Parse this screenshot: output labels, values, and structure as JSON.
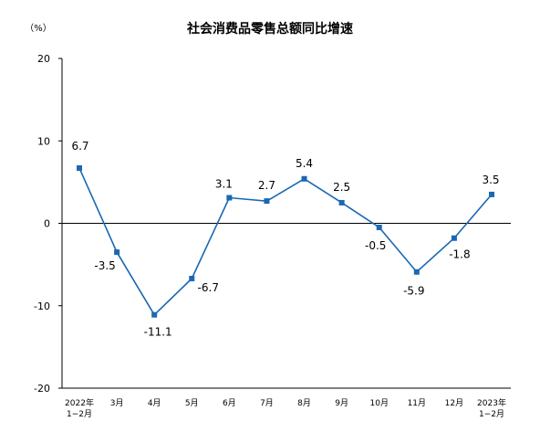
{
  "chart_data": {
    "type": "line",
    "title": "社会消费品零售总额同比增速",
    "unit_label": "（%）",
    "categories": [
      [
        "2022年",
        "1−2月"
      ],
      [
        "3月"
      ],
      [
        "4月"
      ],
      [
        "5月"
      ],
      [
        "6月"
      ],
      [
        "7月"
      ],
      [
        "8月"
      ],
      [
        "9月"
      ],
      [
        "10月"
      ],
      [
        "11月"
      ],
      [
        "12月"
      ],
      [
        "2023年",
        "1−2月"
      ]
    ],
    "values": [
      6.7,
      -3.5,
      -11.1,
      -6.7,
      3.1,
      2.7,
      5.4,
      2.5,
      -0.5,
      -5.9,
      -1.8,
      3.5
    ],
    "data_labels": [
      "6.7",
      "-3.5",
      "-11.1",
      "-6.7",
      "3.1",
      "2.7",
      "5.4",
      "2.5",
      "-0.5",
      "-5.9",
      "-1.8",
      "3.5"
    ],
    "ylim": [
      -20,
      20
    ],
    "yticks": [
      20,
      10,
      0,
      -10,
      -20
    ],
    "grid": false,
    "legend": "none",
    "series_color": "#1a68b3",
    "marker": "square"
  }
}
